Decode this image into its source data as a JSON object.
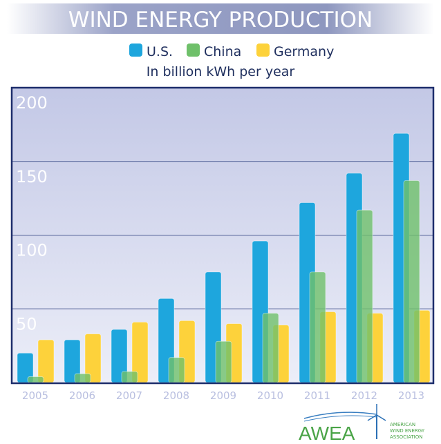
{
  "chart_data": {
    "type": "bar",
    "title": "WIND ENERGY PRODUCTION",
    "subtitle": "In billion kWh per year",
    "xlabel": "",
    "ylabel": "",
    "ylim": [
      0,
      200
    ],
    "yticks": [
      "50",
      "100",
      "150",
      "200"
    ],
    "ytick_values": [
      50,
      100,
      150,
      200
    ],
    "grid": true,
    "legend_position": "top-center",
    "categories": [
      "2005",
      "2006",
      "2007",
      "2008",
      "2009",
      "2010",
      "2011",
      "2012",
      "2013"
    ],
    "series": [
      {
        "name": "U.S.",
        "color": "#1ea6dd",
        "values": [
          20,
          29,
          36,
          57,
          75,
          96,
          122,
          142,
          169
        ]
      },
      {
        "name": "China",
        "color": "#6fc06a",
        "values": [
          4,
          6,
          7.5,
          17,
          28,
          47,
          75,
          117,
          137
        ]
      },
      {
        "name": "Germany",
        "color": "#fdd23b",
        "values": [
          29,
          33,
          41,
          42,
          40,
          39,
          48,
          47,
          49
        ]
      }
    ]
  },
  "logo": {
    "name": "AWEA",
    "tagline_lines": [
      "AMERICAN",
      "WIND ENERGY",
      "ASSOCIATION"
    ]
  }
}
